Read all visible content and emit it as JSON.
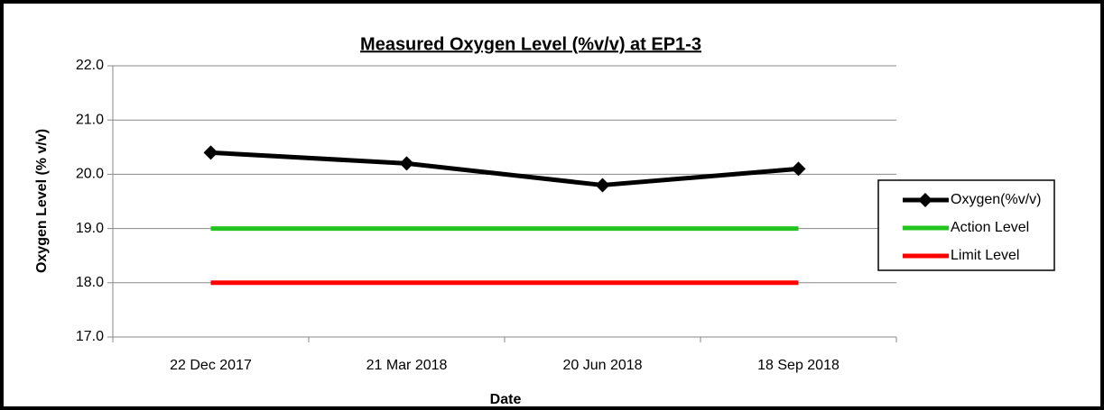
{
  "chart_data": {
    "type": "line",
    "title": "Measured Oxygen Level (%v/v) at EP1-3",
    "x_label": "Date",
    "y_label": "Oxygen Level (% v/v)",
    "categories": [
      "22 Dec 2017",
      "21 Mar 2018",
      "20 Jun 2018",
      "18 Sep 2018"
    ],
    "series": [
      {
        "name": "Oxygen(%v/v)",
        "color": "#000000",
        "marker": "diamond",
        "values": [
          20.4,
          20.2,
          19.8,
          20.1
        ]
      },
      {
        "name": "Action Level",
        "color": "#22c51f",
        "values": [
          19,
          19,
          19,
          19
        ]
      },
      {
        "name": "Limit Level",
        "color": "#ff0000",
        "values": [
          18,
          18,
          18,
          18
        ]
      }
    ],
    "ylim": [
      17,
      22
    ],
    "yticks": [
      {
        "value": 17,
        "label": "17.0"
      },
      {
        "value": 18,
        "label": "18.0"
      },
      {
        "value": 19,
        "label": "19.0"
      },
      {
        "value": 20,
        "label": "20.0"
      },
      {
        "value": 21,
        "label": "21.0"
      },
      {
        "value": 22,
        "label": "22.0"
      }
    ],
    "grid": true,
    "legend": "right"
  }
}
